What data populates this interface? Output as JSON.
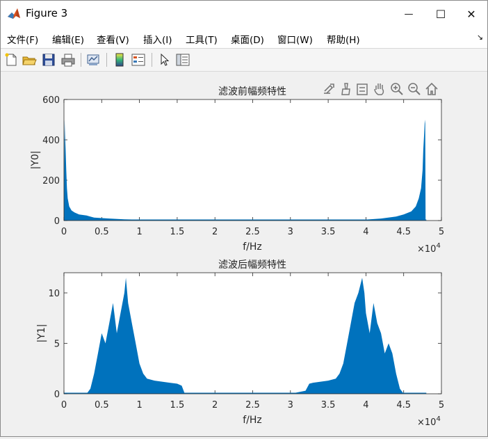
{
  "window": {
    "title": "Figure 3",
    "minimize_glyph": "—",
    "maximize_glyph": "☐",
    "close_glyph": "✕"
  },
  "menu": {
    "items": [
      "文件(F)",
      "编辑(E)",
      "查看(V)",
      "插入(I)",
      "工具(T)",
      "桌面(D)",
      "窗口(W)",
      "帮助(H)"
    ],
    "overflow_glyph": "↘"
  },
  "toolbar": {
    "icons": [
      "new-figure-icon",
      "open-file-icon",
      "save-icon",
      "print-icon",
      "link-plot-icon",
      "colorbar-icon",
      "legend-icon",
      "pointer-icon",
      "property-inspector-icon"
    ]
  },
  "axes_toolbar": {
    "icons": [
      "export-icon",
      "brush-icon",
      "data-tips-icon",
      "pan-icon",
      "zoom-in-icon",
      "zoom-out-icon",
      "home-icon"
    ]
  },
  "colors": {
    "series": "#0072bd",
    "axis": "#262626"
  },
  "chart_data": [
    {
      "type": "line",
      "title": "滤波前幅频特性",
      "xlabel": "f/Hz",
      "ylabel": "|Y0|",
      "xlim": [
        0,
        50000
      ],
      "ylim": [
        0,
        600
      ],
      "xticks": [
        0,
        5000,
        10000,
        15000,
        20000,
        25000,
        30000,
        35000,
        40000,
        45000,
        50000
      ],
      "xtick_labels": [
        "0",
        "0.5",
        "1",
        "1.5",
        "2",
        "2.5",
        "3",
        "3.5",
        "4",
        "4.5",
        "5"
      ],
      "yticks": [
        0,
        200,
        400,
        600
      ],
      "ytick_labels": [
        "0",
        "200",
        "400",
        "600"
      ],
      "x_exponent_label": "×10",
      "x_exponent_power": "4",
      "grid": false,
      "series": [
        {
          "x": [
            0,
            80,
            150,
            220,
            300,
            400,
            500,
            700,
            1000,
            1400,
            2000,
            3000,
            4000,
            6000,
            8000,
            10000,
            15000,
            20000,
            25000,
            30000,
            35000,
            40000,
            42000,
            44000,
            45000,
            46000,
            46600,
            47000,
            47300,
            47500,
            47600,
            47700,
            47800,
            47850,
            47900,
            48000
          ],
          "y": [
            0,
            500,
            420,
            350,
            250,
            160,
            110,
            70,
            50,
            40,
            30,
            25,
            15,
            10,
            6,
            4,
            3,
            2,
            2,
            2,
            3,
            5,
            10,
            20,
            30,
            45,
            70,
            110,
            160,
            250,
            350,
            420,
            500,
            480,
            0,
            0
          ]
        }
      ]
    },
    {
      "type": "line",
      "title": "滤波后幅频特性",
      "xlabel": "f/Hz",
      "ylabel": "|Y1|",
      "xlim": [
        0,
        50000
      ],
      "ylim": [
        0,
        12
      ],
      "xticks": [
        0,
        5000,
        10000,
        15000,
        20000,
        25000,
        30000,
        35000,
        40000,
        45000,
        50000
      ],
      "xtick_labels": [
        "0",
        "0.5",
        "1",
        "1.5",
        "2",
        "2.5",
        "3",
        "3.5",
        "4",
        "4.5",
        "5"
      ],
      "yticks": [
        0,
        5,
        10
      ],
      "ytick_labels": [
        "0",
        "5",
        "10"
      ],
      "x_exponent_label": "×10",
      "x_exponent_power": "4",
      "grid": false,
      "series": [
        {
          "x": [
            0,
            3000,
            3500,
            4000,
            4500,
            5000,
            5500,
            6000,
            6500,
            7000,
            7500,
            8000,
            8200,
            8500,
            9000,
            9500,
            10000,
            10500,
            11000,
            12000,
            13000,
            14000,
            15000,
            15600,
            16000,
            20000,
            25000,
            30000,
            32000,
            32500,
            33000,
            34000,
            35000,
            36000,
            36500,
            37000,
            37500,
            38000,
            38500,
            39000,
            39500,
            39800,
            40000,
            40500,
            41000,
            41500,
            42000,
            42500,
            43000,
            43500,
            44000,
            44500,
            45000,
            48000
          ],
          "y": [
            0,
            0,
            0.5,
            2,
            4,
            6,
            5,
            7,
            9,
            6,
            8,
            10,
            11.5,
            9,
            7,
            5,
            3,
            2,
            1.5,
            1.3,
            1.2,
            1.1,
            1.0,
            0.8,
            0,
            0,
            0,
            0,
            0.3,
            1.0,
            1.1,
            1.2,
            1.3,
            1.5,
            2,
            3,
            5,
            7,
            9,
            10,
            11.5,
            10,
            8,
            6,
            9,
            7,
            6,
            4,
            5,
            4,
            2,
            0.5,
            0,
            0
          ]
        }
      ]
    }
  ]
}
